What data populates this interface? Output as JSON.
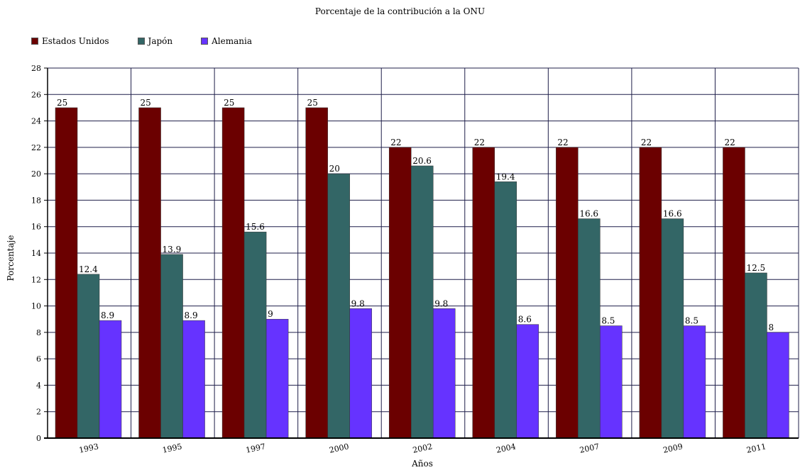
{
  "chart_data": {
    "type": "bar",
    "title": "Porcentaje de la contribución a la ONU",
    "xlabel": "Años",
    "ylabel": "Porcentaje",
    "categories": [
      "1993",
      "1995",
      "1997",
      "2000",
      "2002",
      "2004",
      "2007",
      "2009",
      "2011"
    ],
    "series": [
      {
        "name": "Estados Unidos",
        "color": "#6b0000",
        "values": [
          25,
          25,
          25,
          25,
          22,
          22,
          22,
          22,
          22
        ],
        "labels": [
          "25",
          "25",
          "25",
          "25",
          "22",
          "22",
          "22",
          "22",
          "22"
        ]
      },
      {
        "name": "Japón",
        "color": "#336666",
        "values": [
          12.4,
          13.9,
          15.6,
          20,
          20.6,
          19.4,
          16.6,
          16.6,
          12.5
        ],
        "labels": [
          "12.4",
          "13.9",
          "15.6",
          "20",
          "20.6",
          "19.4",
          "16.6",
          "16.6",
          "12.5"
        ]
      },
      {
        "name": "Alemania",
        "color": "#6633ff",
        "values": [
          8.9,
          8.9,
          9,
          9.8,
          9.8,
          8.6,
          8.5,
          8.5,
          8
        ],
        "labels": [
          "8.9",
          "8.9",
          "9",
          "9.8",
          "9.8",
          "8.6",
          "8.5",
          "8.5",
          "8"
        ]
      }
    ],
    "ylim": [
      0,
      28
    ],
    "yticks": [
      "0",
      "2",
      "4",
      "6",
      "8",
      "10",
      "12",
      "14",
      "16",
      "18",
      "20",
      "22",
      "24",
      "26",
      "28"
    ],
    "grid": true,
    "legend_position": "top-left"
  }
}
